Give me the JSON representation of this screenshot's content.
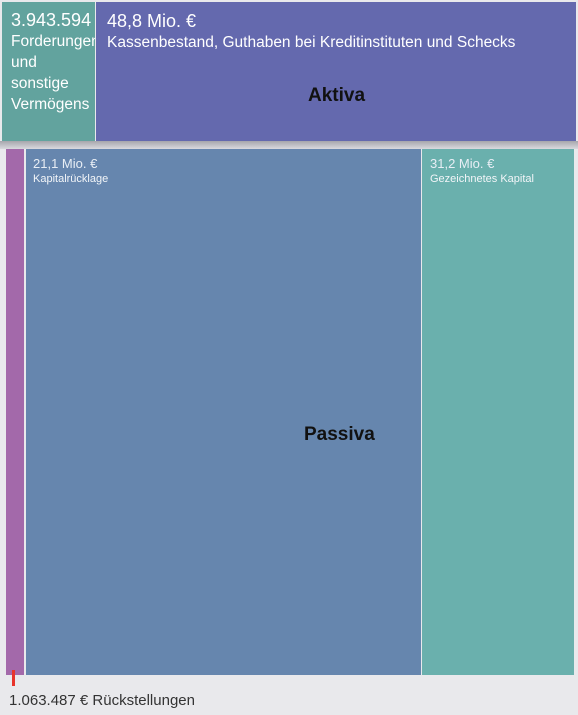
{
  "chart_data": {
    "type": "treemap",
    "groups": [
      {
        "name": "Aktiva",
        "items": [
          {
            "value_label": "3.943.594",
            "label": "Forderungen und sonstige Vermögens",
            "value_eur": 3943594,
            "color": "#62a39e"
          },
          {
            "value_label": "48,8 Mio. €",
            "label": "Kassenbestand, Guthaben bei Kreditinstituten und Schecks",
            "value_eur": 48800000,
            "color": "#6469ae"
          }
        ]
      },
      {
        "name": "Passiva",
        "items": [
          {
            "value_label": "",
            "label": "",
            "value_eur": 1063487,
            "color": "#a369aa"
          },
          {
            "value_label": "21,1 Mio. €",
            "label": "Kapitalrücklage",
            "value_eur": 21100000,
            "color": "#6686ae"
          },
          {
            "value_label": "31,2 Mio. €",
            "label": "Gezeichnetes Kapital",
            "value_eur": 31200000,
            "color": "#6ab0ad"
          }
        ]
      }
    ]
  },
  "footer": {
    "text": "1.063.487 € Rückstellungen",
    "marker_color": "#e8342b"
  }
}
